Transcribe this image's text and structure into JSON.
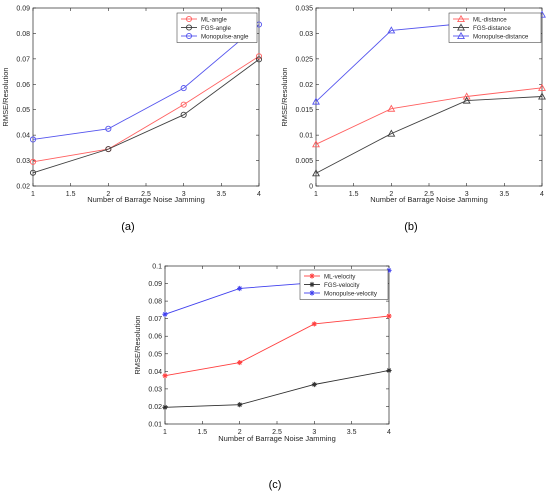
{
  "chart_data": [
    {
      "id": "a",
      "type": "line",
      "panel_label": "(a)",
      "xlabel": "Number of  Barrage Noise Jamming",
      "ylabel": "RMSE/Resolution",
      "xlim": [
        1,
        4
      ],
      "ylim": [
        0.02,
        0.09
      ],
      "xticks": [
        "1",
        "1.5",
        "2",
        "2.5",
        "3",
        "3.5",
        "4"
      ],
      "yticks": [
        "0.02",
        "0.03",
        "0.04",
        "0.05",
        "0.06",
        "0.07",
        "0.08",
        "0.09"
      ],
      "x": [
        1,
        2,
        3,
        4
      ],
      "marker": "circle",
      "legend_position": "top-right",
      "series": [
        {
          "name": "ML-angle",
          "color": "#ff6060",
          "values": [
            0.0295,
            0.0345,
            0.052,
            0.071
          ]
        },
        {
          "name": "FGS-angle",
          "color": "#404040",
          "values": [
            0.0252,
            0.0345,
            0.048,
            0.0698
          ]
        },
        {
          "name": "Monopulse-angle",
          "color": "#5555ee",
          "values": [
            0.0383,
            0.0425,
            0.0585,
            0.0835
          ]
        }
      ]
    },
    {
      "id": "b",
      "type": "line",
      "panel_label": "(b)",
      "xlabel": "Number of  Barrage Noise Jamming",
      "ylabel": "RMSE/Resolution",
      "xlim": [
        1,
        4
      ],
      "ylim": [
        0,
        0.035
      ],
      "xticks": [
        "1",
        "1.5",
        "2",
        "2.5",
        "3",
        "3.5",
        "4"
      ],
      "yticks": [
        "0",
        "0.005",
        "0.01",
        "0.015",
        "0.02",
        "0.025",
        "0.03",
        "0.035"
      ],
      "x": [
        1,
        2,
        3,
        4
      ],
      "marker": "triangle",
      "legend_position": "top-right",
      "series": [
        {
          "name": "ML-distance",
          "color": "#ff6060",
          "values": [
            0.0082,
            0.0152,
            0.0176,
            0.0193
          ]
        },
        {
          "name": "FGS-distance",
          "color": "#404040",
          "values": [
            0.0025,
            0.0103,
            0.0168,
            0.0176
          ]
        },
        {
          "name": "Monopulse-distance",
          "color": "#5555ee",
          "values": [
            0.0166,
            0.0306,
            0.032,
            0.0337
          ]
        }
      ]
    },
    {
      "id": "c",
      "type": "line",
      "panel_label": "(c)",
      "xlabel": "Number of  Barrage Noise Jamming",
      "ylabel": "RMSE/Resolution",
      "xlim": [
        1,
        4
      ],
      "ylim": [
        0.01,
        0.1
      ],
      "xticks": [
        "1",
        "1.5",
        "2",
        "2.5",
        "3",
        "3.5",
        "4"
      ],
      "yticks": [
        "0.01",
        "0.02",
        "0.03",
        "0.04",
        "0.05",
        "0.06",
        "0.07",
        "0.08",
        "0.09",
        "0.1"
      ],
      "x": [
        1,
        2,
        3,
        4
      ],
      "marker": "star",
      "legend_position": "top-right",
      "series": [
        {
          "name": "ML-velocity",
          "color": "#ff4040",
          "values": [
            0.0375,
            0.045,
            0.067,
            0.0715
          ]
        },
        {
          "name": "FGS-velocity",
          "color": "#303030",
          "values": [
            0.0195,
            0.021,
            0.0325,
            0.0405
          ]
        },
        {
          "name": "Monopulse-velocity",
          "color": "#4040ee",
          "values": [
            0.0725,
            0.0872,
            0.0905,
            0.0975
          ]
        }
      ]
    }
  ]
}
